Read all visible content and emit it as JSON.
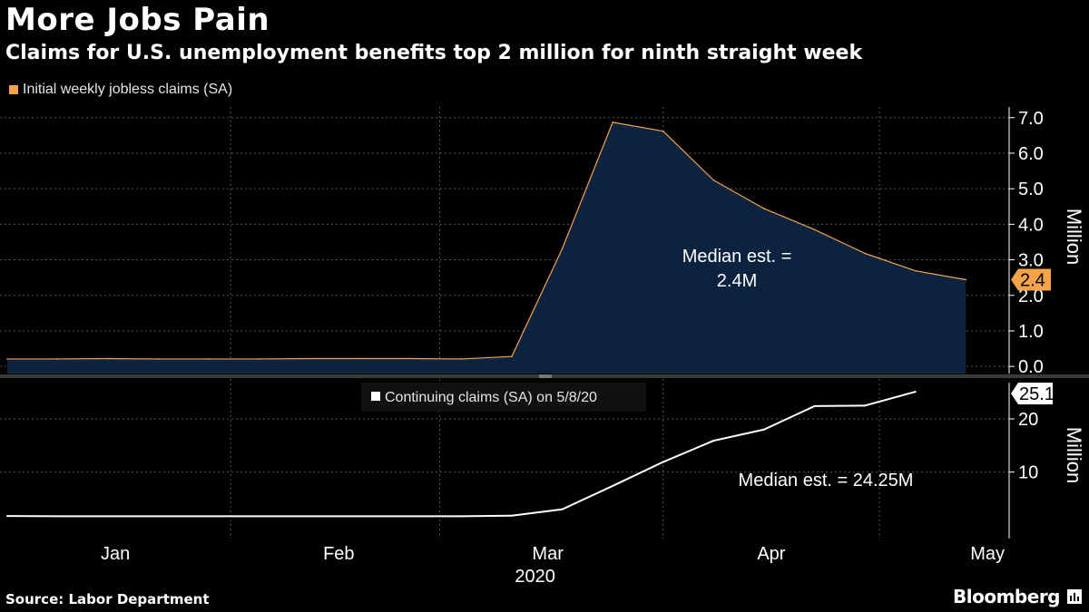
{
  "header": {
    "title": "More Jobs Pain",
    "subtitle": "Claims for U.S. unemployment benefits top 2 million for ninth straight week"
  },
  "footer": {
    "source": "Source: Labor Department",
    "brand": "Bloomberg"
  },
  "colors": {
    "background": "#000000",
    "series_initial_line": "#f5a34a",
    "series_initial_fill": "#0c2340",
    "series_continuing": "#ffffff",
    "grid": "#555555",
    "label_badge_orange": "#f5a34a"
  },
  "chart_data": [
    {
      "type": "area",
      "legend": "Initial weekly jobless claims (SA)",
      "ylabel": "Million",
      "ylim": [
        -0.2,
        7.3
      ],
      "yticks": [
        0,
        1,
        2,
        3,
        4,
        5,
        6,
        7
      ],
      "ytick_labels": [
        "0.0",
        "1.0",
        "2.0",
        "3.0",
        "4.0",
        "5.0",
        "6.0",
        "7.0"
      ],
      "annotation": [
        "Median est. =",
        "2.4M"
      ],
      "last_value_label": "2.4",
      "x_days": [
        0,
        7,
        14,
        21,
        28,
        35,
        42,
        49,
        56,
        63,
        70,
        77,
        84,
        91,
        98,
        105,
        112,
        119,
        126,
        133
      ],
      "values": [
        0.21,
        0.21,
        0.22,
        0.21,
        0.21,
        0.21,
        0.22,
        0.22,
        0.22,
        0.21,
        0.28,
        3.31,
        6.87,
        6.62,
        5.24,
        4.44,
        3.85,
        3.18,
        2.69,
        2.44
      ]
    },
    {
      "type": "line",
      "legend": "Continuing claims (SA) on 5/8/20",
      "ylabel": "Million",
      "ylim": [
        -2.5,
        27.5
      ],
      "yticks": [
        10,
        20
      ],
      "ytick_labels": [
        "10",
        "20"
      ],
      "annotation": "Median est. = 24.25M",
      "last_value_label": "25.1",
      "x_days": [
        0,
        7,
        14,
        21,
        28,
        35,
        42,
        49,
        56,
        63,
        70,
        77,
        84,
        91,
        98,
        105,
        112,
        119,
        126
      ],
      "values": [
        1.75,
        1.7,
        1.7,
        1.7,
        1.7,
        1.7,
        1.7,
        1.7,
        1.7,
        1.7,
        1.8,
        3.0,
        7.4,
        11.9,
        15.9,
        18.0,
        22.4,
        22.5,
        25.1
      ]
    }
  ],
  "x_axis": {
    "domain_days": [
      -1,
      139
    ],
    "month_labels": [
      {
        "label": "Jan",
        "day": 15
      },
      {
        "label": "Feb",
        "day": 46
      },
      {
        "label": "Mar",
        "day": 75
      },
      {
        "label": "Apr",
        "day": 106
      },
      {
        "label": "May",
        "day": 136
      }
    ],
    "year_label": "2020",
    "year_day": 75,
    "gridline_days": [
      31,
      60,
      91,
      121
    ]
  }
}
